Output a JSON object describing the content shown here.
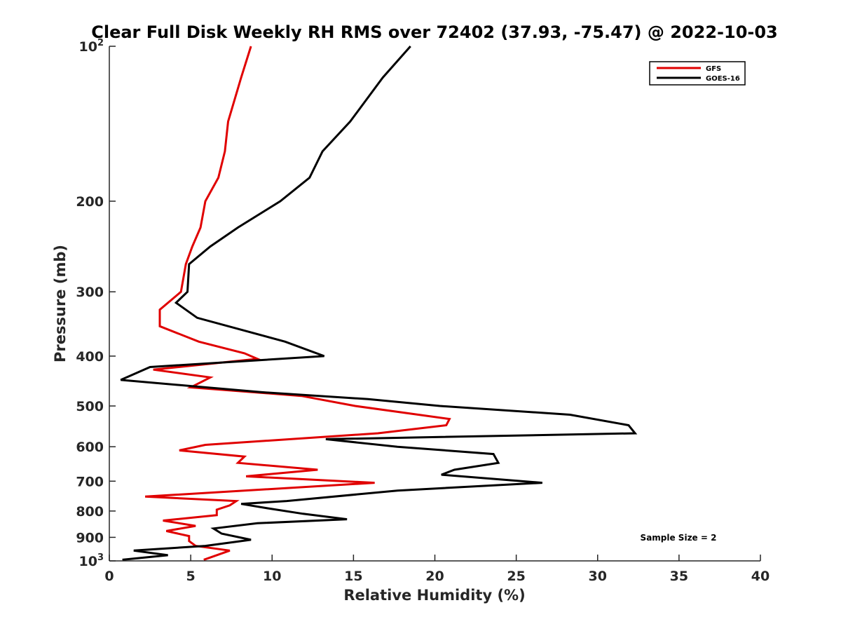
{
  "chart_data": {
    "type": "line",
    "title": "Clear Full Disk Weekly RH RMS over 72402 (37.93, -75.47) @ 2022-10-03",
    "xlabel": "Relative Humidity (%)",
    "ylabel": "Pressure (mb)",
    "xlim": [
      0,
      40
    ],
    "ylim": [
      100,
      1000
    ],
    "yscale": "log",
    "y_reversed": true,
    "grid": false,
    "legend_position": "top-right",
    "x_ticks": [
      0,
      5,
      10,
      15,
      20,
      25,
      30,
      35,
      40
    ],
    "x_tick_labels": [
      "0",
      "5",
      "10",
      "15",
      "20",
      "25",
      "30",
      "35",
      "40"
    ],
    "y_ticks": [
      {
        "value": 100,
        "base": "10",
        "exp": "2"
      },
      {
        "value": 200,
        "label": "200"
      },
      {
        "value": 300,
        "label": "300"
      },
      {
        "value": 400,
        "label": "400"
      },
      {
        "value": 500,
        "label": "500"
      },
      {
        "value": 600,
        "label": "600"
      },
      {
        "value": 700,
        "label": "700"
      },
      {
        "value": 800,
        "label": "800"
      },
      {
        "value": 900,
        "label": "900"
      },
      {
        "value": 1000,
        "base": "10",
        "exp": "3"
      }
    ],
    "annotation": "Sample Size = 2",
    "series": [
      {
        "name": "GFS",
        "color": "#e00000",
        "points": [
          [
            8.7,
            100
          ],
          [
            8.1,
            115
          ],
          [
            7.3,
            140
          ],
          [
            7.1,
            160
          ],
          [
            6.7,
            180
          ],
          [
            5.9,
            200
          ],
          [
            5.6,
            225
          ],
          [
            5.1,
            245
          ],
          [
            4.7,
            265
          ],
          [
            4.4,
            300
          ],
          [
            3.1,
            325
          ],
          [
            3.1,
            350
          ],
          [
            5.5,
            375
          ],
          [
            8.3,
            395
          ],
          [
            9.1,
            405
          ],
          [
            2.7,
            425
          ],
          [
            6.2,
            440
          ],
          [
            5.0,
            460
          ],
          [
            11.8,
            478
          ],
          [
            15.1,
            500
          ],
          [
            20.9,
            530
          ],
          [
            20.7,
            545
          ],
          [
            16.5,
            565
          ],
          [
            5.9,
            595
          ],
          [
            4.3,
            610
          ],
          [
            8.3,
            627
          ],
          [
            7.9,
            645
          ],
          [
            12.8,
            665
          ],
          [
            8.4,
            685
          ],
          [
            16.3,
            705
          ],
          [
            2.2,
            750
          ],
          [
            7.8,
            765
          ],
          [
            7.4,
            780
          ],
          [
            6.6,
            795
          ],
          [
            6.6,
            815
          ],
          [
            3.3,
            835
          ],
          [
            5.3,
            855
          ],
          [
            3.5,
            875
          ],
          [
            4.9,
            895
          ],
          [
            4.9,
            915
          ],
          [
            5.3,
            935
          ],
          [
            7.4,
            955
          ],
          [
            5.8,
            995
          ]
        ]
      },
      {
        "name": "GOES-16",
        "color": "#000000",
        "points": [
          [
            18.5,
            100
          ],
          [
            16.8,
            115
          ],
          [
            14.8,
            140
          ],
          [
            13.1,
            160
          ],
          [
            12.3,
            180
          ],
          [
            10.5,
            200
          ],
          [
            7.9,
            225
          ],
          [
            6.2,
            245
          ],
          [
            4.9,
            265
          ],
          [
            4.8,
            300
          ],
          [
            4.1,
            315
          ],
          [
            5.4,
            337
          ],
          [
            10.8,
            375
          ],
          [
            13.2,
            400
          ],
          [
            2.5,
            420
          ],
          [
            0.7,
            445
          ],
          [
            9.3,
            470
          ],
          [
            15.9,
            485
          ],
          [
            20.3,
            500
          ],
          [
            28.3,
            520
          ],
          [
            31.9,
            545
          ],
          [
            32.3,
            565
          ],
          [
            13.3,
            580
          ],
          [
            17.7,
            600
          ],
          [
            23.6,
            620
          ],
          [
            23.9,
            645
          ],
          [
            21.2,
            665
          ],
          [
            20.4,
            680
          ],
          [
            26.6,
            705
          ],
          [
            17.7,
            730
          ],
          [
            10.9,
            765
          ],
          [
            8.1,
            775
          ],
          [
            9.7,
            790
          ],
          [
            11.9,
            810
          ],
          [
            14.6,
            830
          ],
          [
            9.1,
            845
          ],
          [
            6.4,
            865
          ],
          [
            6.9,
            885
          ],
          [
            8.7,
            910
          ],
          [
            5.9,
            935
          ],
          [
            1.5,
            955
          ],
          [
            3.6,
            975
          ],
          [
            0.8,
            995
          ]
        ]
      }
    ]
  }
}
